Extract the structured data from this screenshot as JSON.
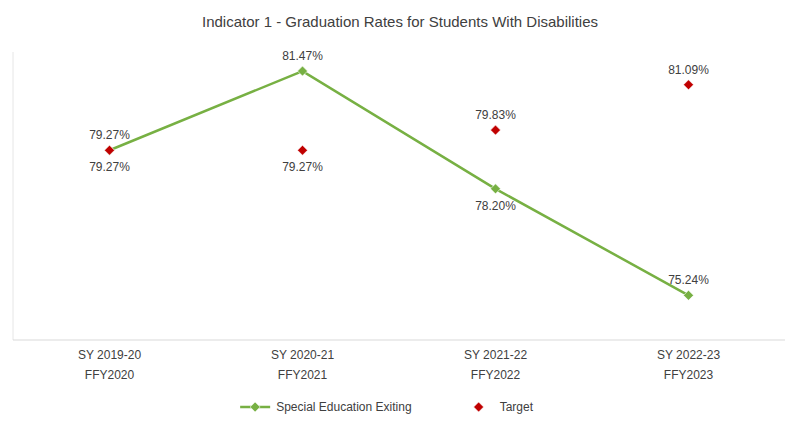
{
  "chart_data": {
    "type": "line",
    "title": "Indicator 1 - Graduation Rates for Students With Disabilities",
    "categories": [
      "SY 2019-20\nFFY2020",
      "SY 2020-21\nFFY2021",
      "SY 2021-22\nFFY2022",
      "SY 2022-23\nFFY2023"
    ],
    "series": [
      {
        "name": "Special Education Exiting",
        "color": "#77b043",
        "marker": "diamond",
        "line_style": "solid",
        "values": [
          79.27,
          81.47,
          78.2,
          75.24
        ],
        "value_labels": [
          "79.27%",
          "81.47%",
          "78.20%",
          "75.24%"
        ]
      },
      {
        "name": "Target",
        "color": "#c00000",
        "marker": "diamond",
        "line_style": "none",
        "values": [
          79.27,
          79.27,
          79.83,
          81.09
        ],
        "value_labels": [
          "79.27%",
          "79.27%",
          "79.83%",
          "81.09%"
        ]
      }
    ],
    "ylim": [
      74,
      82
    ],
    "tick_labels": "x",
    "data_labels": true,
    "grid": false,
    "legend": "bottom"
  }
}
